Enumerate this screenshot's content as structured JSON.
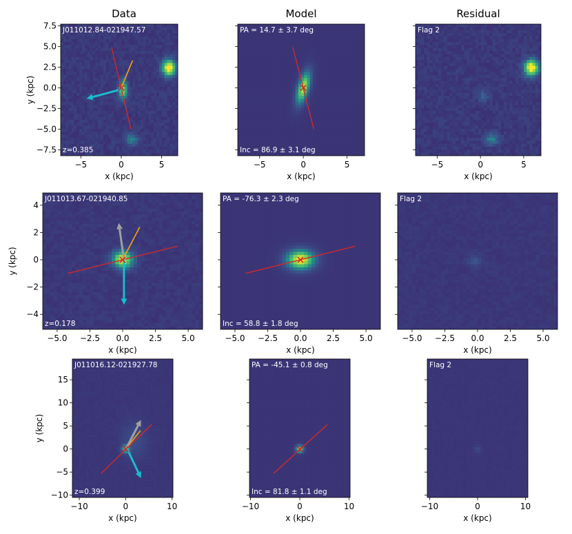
{
  "columns": [
    "Data",
    "Model",
    "Residual"
  ],
  "colors": {
    "background": "#3b2a6e",
    "bright": "#fde725",
    "mid": "#21918c",
    "red_axis": "#d62728",
    "orange_axis": "#ffa500",
    "gray_arrow": "#a0a0a0",
    "cyan_arrow": "#17becf"
  },
  "chart_data": [
    {
      "type": "heatmap",
      "title": "Data",
      "ann_tl": "J011012.84-021947.57",
      "ann_bl": "z=0.385",
      "xlabel": "x (kpc)",
      "ylabel": "y (kpc)",
      "xlim": [
        -7.5,
        7
      ],
      "ylim": [
        -8.2,
        7.7
      ],
      "xticks": [
        -5,
        0,
        5
      ],
      "xticklabels": [
        "−5",
        "0",
        "5"
      ],
      "yticks": [
        7.5,
        5.0,
        2.5,
        0.0,
        -2.5,
        -5.0,
        -7.5
      ],
      "yticklabels": [
        "7.5",
        "5.0",
        "2.5",
        "0.0",
        "−2.5",
        "−5.0",
        "−7.5"
      ],
      "sources": [
        {
          "x": 0.2,
          "y": -0.3,
          "peak": 0.75,
          "sx": 0.4,
          "sy": 0.8
        },
        {
          "x": 5.9,
          "y": 2.4,
          "peak": 1.0,
          "sx": 0.6,
          "sy": 0.7
        },
        {
          "x": 1.3,
          "y": -6.2,
          "peak": 0.35,
          "sx": 0.6,
          "sy": 0.5
        }
      ],
      "noise": 0.12,
      "red_line": [
        [
          -1.2,
          4.9
        ],
        [
          1.2,
          -5.0
        ]
      ],
      "orange_line": [
        [
          0,
          0
        ],
        [
          1.4,
          3.3
        ]
      ],
      "cyan_arrow": [
        [
          0.3,
          -0.1
        ],
        [
          -4.3,
          -1.3
        ]
      ],
      "cross": [
        0,
        0
      ]
    },
    {
      "type": "heatmap",
      "title": "Model",
      "ann_tl": "PA = 14.7 ± 3.7 deg",
      "ann_bl": "Inc = 86.9 ± 3.1 deg",
      "xlabel": "x (kpc)",
      "xlim": [
        -7.5,
        7
      ],
      "ylim": [
        -8.2,
        7.7
      ],
      "xticks": [
        -5,
        0,
        5
      ],
      "xticklabels": [
        "−5",
        "0",
        "5"
      ],
      "yticks": [
        7.5,
        5.0,
        2.5,
        0.0,
        -2.5,
        -5.0,
        -7.5
      ],
      "sources": [
        {
          "x": 0,
          "y": 0,
          "peak": 0.85,
          "sx": 0.45,
          "sy": 1.4,
          "angle": 14.7
        }
      ],
      "noise": 0,
      "red_line": [
        [
          -1.2,
          4.9
        ],
        [
          1.2,
          -5.0
        ]
      ],
      "cross": [
        0,
        0
      ]
    },
    {
      "type": "heatmap",
      "title": "Residual",
      "ann_tl": "Flag 2",
      "xlabel": "x (kpc)",
      "xlim": [
        -7.5,
        7
      ],
      "ylim": [
        -8.2,
        7.7
      ],
      "xticks": [
        -5,
        0,
        5
      ],
      "xticklabels": [
        "−5",
        "0",
        "5"
      ],
      "yticks": [
        7.5,
        5.0,
        2.5,
        0.0,
        -2.5,
        -5.0,
        -7.5
      ],
      "sources": [
        {
          "x": 5.9,
          "y": 2.4,
          "peak": 1.0,
          "sx": 0.6,
          "sy": 0.7
        },
        {
          "x": 1.3,
          "y": -6.2,
          "peak": 0.35,
          "sx": 0.6,
          "sy": 0.5
        },
        {
          "x": 0.3,
          "y": -1.0,
          "peak": 0.25,
          "sx": 0.4,
          "sy": 0.5
        }
      ],
      "noise": 0.12,
      "cross": null
    },
    {
      "type": "heatmap",
      "ann_tl": "J011013.67-021940.85",
      "ann_bl": "z=0.178",
      "xlabel": "x (kpc)",
      "ylabel": "y (kpc)",
      "xlim": [
        -6.1,
        6.1
      ],
      "ylim": [
        -5.1,
        4.9
      ],
      "xticks": [
        -5,
        -2.5,
        0,
        2.5,
        5
      ],
      "xticklabels": [
        "−5.0",
        "−2.5",
        "0.0",
        "2.5",
        "5.0"
      ],
      "yticks": [
        4,
        2,
        0,
        -2,
        -4
      ],
      "yticklabels": [
        "4",
        "2",
        "0",
        "−2",
        "−4"
      ],
      "sources": [
        {
          "x": 0,
          "y": 0,
          "peak": 0.9,
          "sx": 0.55,
          "sy": 0.45
        }
      ],
      "noise": 0.08,
      "red_line": [
        [
          -4.2,
          -1.0
        ],
        [
          4.2,
          1.0
        ]
      ],
      "orange_line": [
        [
          0,
          0
        ],
        [
          1.3,
          2.4
        ]
      ],
      "gray_arrow": [
        [
          0.1,
          0
        ],
        [
          -0.3,
          2.7
        ]
      ],
      "cyan_arrow": [
        [
          0.1,
          0
        ],
        [
          0.1,
          -3.3
        ]
      ],
      "cross": [
        0,
        0
      ]
    },
    {
      "type": "heatmap",
      "ann_tl": "PA = -76.3 ± 2.3 deg",
      "ann_bl": "Inc = 58.8 ± 1.8 deg",
      "xlabel": "x (kpc)",
      "xlim": [
        -6.1,
        6.1
      ],
      "ylim": [
        -5.1,
        4.9
      ],
      "xticks": [
        -5,
        -2.5,
        0,
        2.5,
        5
      ],
      "xticklabels": [
        "−5.0",
        "−2.5",
        "0.0",
        "2.5",
        "5.0"
      ],
      "yticks": [
        4,
        2,
        0,
        -2,
        -4
      ],
      "sources": [
        {
          "x": 0,
          "y": 0,
          "peak": 0.95,
          "sx": 0.75,
          "sy": 0.5
        }
      ],
      "noise": 0,
      "red_line": [
        [
          -4.2,
          -1.0
        ],
        [
          4.2,
          1.0
        ]
      ],
      "cross": [
        0,
        0
      ]
    },
    {
      "type": "heatmap",
      "ann_tl": "Flag 2",
      "xlabel": "x (kpc)",
      "xlim": [
        -6.1,
        6.1
      ],
      "ylim": [
        -5.1,
        4.9
      ],
      "xticks": [
        -5,
        -2.5,
        0,
        2.5,
        5
      ],
      "xticklabels": [
        "−5.0",
        "−2.5",
        "0.0",
        "2.5",
        "5.0"
      ],
      "yticks": [
        4,
        2,
        0,
        -2,
        -4
      ],
      "sources": [
        {
          "x": -0.2,
          "y": -0.1,
          "peak": 0.18,
          "sx": 0.4,
          "sy": 0.3
        }
      ],
      "noise": 0.06,
      "cross": null
    },
    {
      "type": "heatmap",
      "ann_tl": "J011016.12-021927.78",
      "ann_bl": "z=0.399",
      "xlabel": "x (kpc)",
      "ylabel": "y (kpc)",
      "xlim": [
        -11.5,
        10.2
      ],
      "ylim": [
        -10.5,
        19.5
      ],
      "xticks": [
        -10,
        0,
        10
      ],
      "xticklabels": [
        "−10",
        "0",
        "10"
      ],
      "yticks": [
        15,
        10,
        5,
        0,
        -5,
        -10
      ],
      "yticklabels": [
        "15",
        "10",
        "5",
        "0",
        "−5",
        "−10"
      ],
      "sources": [
        {
          "x": 0,
          "y": 0,
          "peak": 0.6,
          "sx": 0.6,
          "sy": 0.6
        },
        {
          "x": 1.8,
          "y": 2.0,
          "peak": 0.15,
          "sx": 1.8,
          "sy": 2.8
        }
      ],
      "noise": 0.03,
      "red_line": [
        [
          -5.3,
          -5.3
        ],
        [
          5.6,
          5.3
        ]
      ],
      "orange_line": [
        [
          0,
          0
        ],
        [
          3.2,
          4.0
        ]
      ],
      "gray_arrow": [
        [
          0.2,
          0.3
        ],
        [
          3.3,
          6.3
        ]
      ],
      "cyan_arrow": [
        [
          0.2,
          0.3
        ],
        [
          3.3,
          -6.3
        ]
      ],
      "cross": [
        0,
        0
      ]
    },
    {
      "type": "heatmap",
      "ann_tl": "PA = -45.1 ± 0.8 deg",
      "ann_bl": "Inc = 81.8 ± 1.1 deg",
      "xlabel": "x (kpc)",
      "xlim": [
        -10.2,
        10.2
      ],
      "ylim": [
        -10.5,
        19.5
      ],
      "xticks": [
        -10,
        0,
        10
      ],
      "xticklabels": [
        "−10",
        "0",
        "10"
      ],
      "yticks": [
        15,
        10,
        5,
        0,
        -5,
        -10
      ],
      "sources": [
        {
          "x": 0,
          "y": 0,
          "peak": 0.8,
          "sx": 0.55,
          "sy": 0.55
        }
      ],
      "noise": 0,
      "red_line": [
        [
          -5.3,
          -5.3
        ],
        [
          5.6,
          5.3
        ]
      ],
      "cross": [
        0,
        0
      ]
    },
    {
      "type": "heatmap",
      "ann_tl": "Flag 2",
      "xlabel": "x (kpc)",
      "xlim": [
        -10.5,
        10.5
      ],
      "ylim": [
        -10.5,
        19.5
      ],
      "xticks": [
        -10,
        0,
        10
      ],
      "xticklabels": [
        "−10",
        "0",
        "10"
      ],
      "yticks": [
        15,
        10,
        5,
        0,
        -5,
        -10
      ],
      "sources": [
        {
          "x": 0,
          "y": 0,
          "peak": 0.12,
          "sx": 0.6,
          "sy": 0.6
        }
      ],
      "noise": 0.02,
      "cross": null
    }
  ]
}
